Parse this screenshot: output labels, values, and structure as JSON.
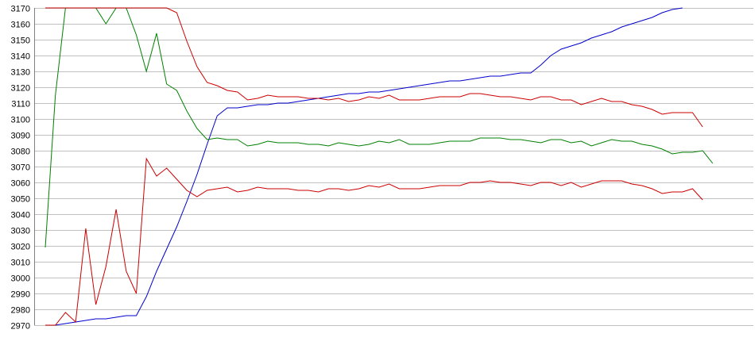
{
  "chart_data": {
    "type": "line",
    "title": "",
    "xlabel": "",
    "ylabel": "",
    "grid": true,
    "legend": "none",
    "ylim": [
      2970,
      3170
    ],
    "yticks": [
      2970,
      2980,
      2990,
      3000,
      3010,
      3020,
      3030,
      3040,
      3050,
      3060,
      3070,
      3080,
      3090,
      3100,
      3110,
      3120,
      3130,
      3140,
      3150,
      3160,
      3170
    ],
    "x_points": 70,
    "series": [
      {
        "color": "#0000cc",
        "values": [
          2970,
          2970,
          2971,
          2972,
          2973,
          2974,
          2974,
          2975,
          2976,
          2976,
          2988,
          3004,
          3018,
          3032,
          3048,
          3065,
          3084,
          3102,
          3107,
          3107,
          3108,
          3109,
          3109,
          3110,
          3110,
          3111,
          3112,
          3113,
          3114,
          3115,
          3116,
          3116,
          3117,
          3117,
          3118,
          3119,
          3120,
          3121,
          3122,
          3123,
          3124,
          3124,
          3125,
          3126,
          3127,
          3127,
          3128,
          3129,
          3129,
          3134,
          3140,
          3144,
          3146,
          3148,
          3151,
          3153,
          3155,
          3158,
          3160,
          3162,
          3164,
          3167,
          3169,
          3170
        ]
      },
      {
        "color": "#008000",
        "values": [
          3019,
          3115,
          3170,
          3170,
          3170,
          3170,
          3160,
          3170,
          3170,
          3153,
          3130,
          3154,
          3122,
          3118,
          3105,
          3094,
          3087,
          3088,
          3087,
          3087,
          3083,
          3084,
          3086,
          3085,
          3085,
          3085,
          3084,
          3084,
          3083,
          3085,
          3084,
          3083,
          3084,
          3086,
          3085,
          3087,
          3084,
          3084,
          3084,
          3085,
          3086,
          3086,
          3086,
          3088,
          3088,
          3088,
          3087,
          3087,
          3086,
          3085,
          3087,
          3087,
          3085,
          3086,
          3083,
          3085,
          3087,
          3086,
          3086,
          3084,
          3083,
          3081,
          3078,
          3079,
          3079,
          3080,
          3072
        ]
      },
      {
        "color": "#cc0000",
        "values": [
          3170,
          3170,
          3170,
          3170,
          3170,
          3170,
          3170,
          3170,
          3170,
          3170,
          3170,
          3170,
          3170,
          3167,
          3149,
          3133,
          3123,
          3121,
          3118,
          3117,
          3112,
          3113,
          3115,
          3114,
          3114,
          3114,
          3113,
          3113,
          3112,
          3113,
          3111,
          3112,
          3114,
          3113,
          3115,
          3112,
          3112,
          3112,
          3113,
          3114,
          3114,
          3114,
          3116,
          3116,
          3115,
          3114,
          3114,
          3113,
          3112,
          3114,
          3114,
          3112,
          3112,
          3109,
          3111,
          3113,
          3111,
          3111,
          3109,
          3108,
          3106,
          3103,
          3104,
          3104,
          3104,
          3095
        ]
      },
      {
        "color": "#cc0000",
        "values": [
          2970,
          2970,
          2978,
          2972,
          3031,
          2983,
          3007,
          3043,
          3004,
          2990,
          3075,
          3064,
          3069,
          3062,
          3055,
          3051,
          3055,
          3056,
          3057,
          3054,
          3055,
          3057,
          3056,
          3056,
          3056,
          3055,
          3055,
          3054,
          3056,
          3056,
          3055,
          3056,
          3058,
          3057,
          3059,
          3056,
          3056,
          3056,
          3057,
          3058,
          3058,
          3058,
          3060,
          3060,
          3061,
          3060,
          3060,
          3059,
          3058,
          3060,
          3060,
          3058,
          3060,
          3057,
          3059,
          3061,
          3061,
          3061,
          3059,
          3058,
          3056,
          3053,
          3054,
          3054,
          3056,
          3049
        ]
      }
    ]
  }
}
